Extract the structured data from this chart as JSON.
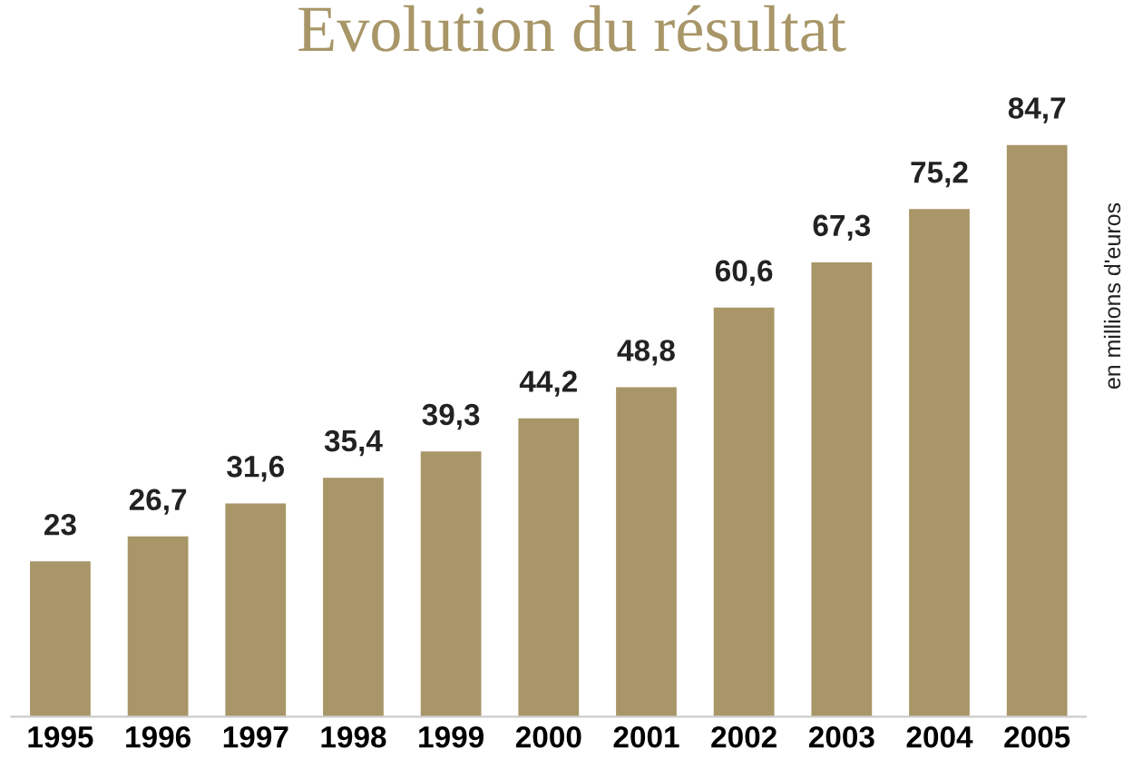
{
  "chart_data": {
    "type": "bar",
    "title": "Evolution du résultat",
    "y2label": "en millions d'euros",
    "categories": [
      "1995",
      "1996",
      "1997",
      "1998",
      "1999",
      "2000",
      "2001",
      "2002",
      "2003",
      "2004",
      "2005"
    ],
    "values": [
      23,
      26.7,
      31.6,
      35.4,
      39.3,
      44.2,
      48.8,
      60.6,
      67.3,
      75.2,
      84.7
    ],
    "value_labels": [
      "23",
      "26,7",
      "31,6",
      "35,4",
      "39,3",
      "44,2",
      "48,8",
      "60,6",
      "67,3",
      "75,2",
      "84,7"
    ],
    "color": "#a89668",
    "grid": false,
    "legend": false
  }
}
